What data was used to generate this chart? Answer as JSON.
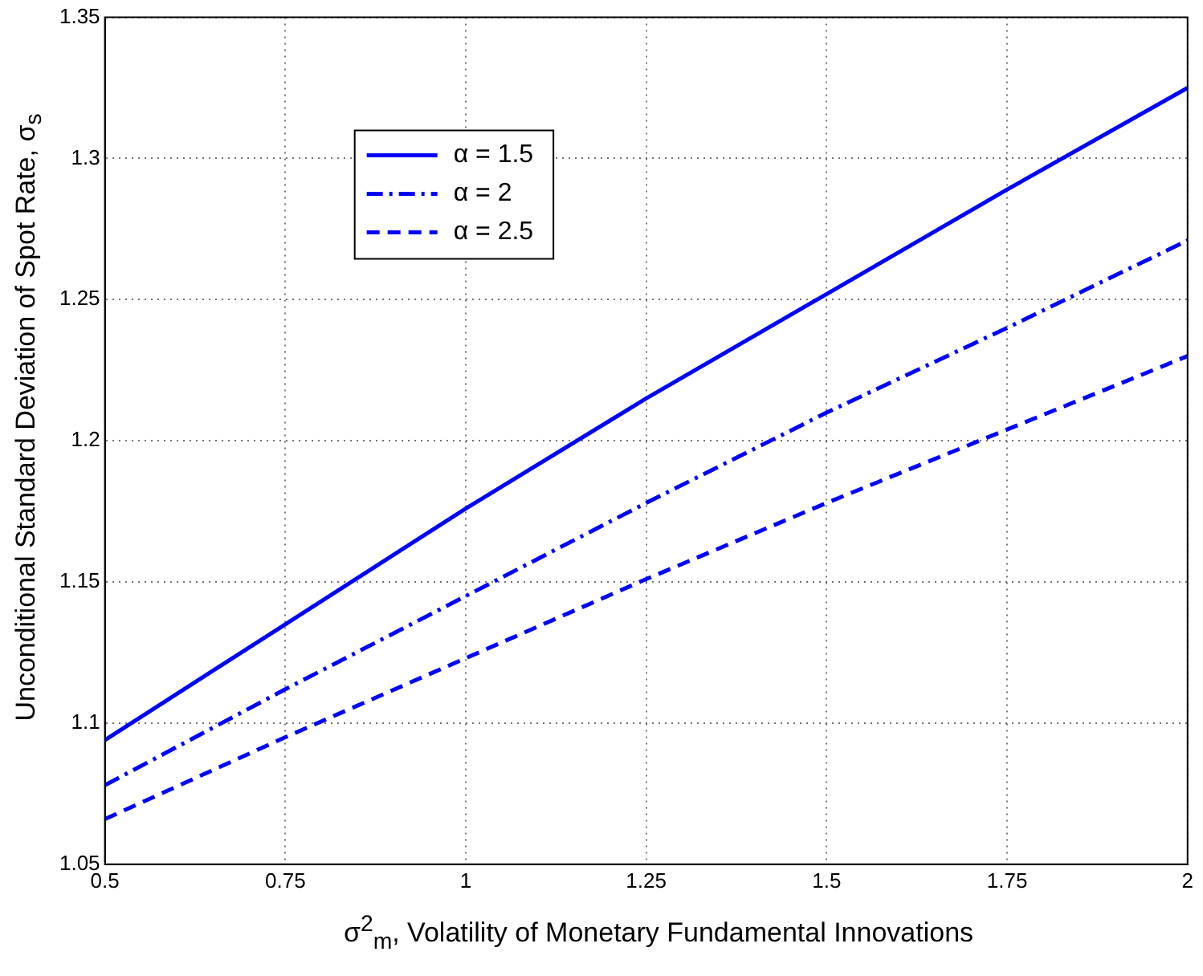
{
  "chart_data": {
    "type": "line",
    "xlabel": "σ$^{2}$$_{m}$, Volatility of Monetary Fundamental Innovations",
    "ylabel": "Unconditional Standard Deviation of Spot Rate, σ$_{s}$",
    "x": [
      0.5,
      0.75,
      1,
      1.25,
      1.5,
      1.75,
      2
    ],
    "series": [
      {
        "name": "α = 1.5",
        "color": "#0000ff",
        "line_style": "solid",
        "values": [
          1.094,
          1.135,
          1.176,
          1.215,
          1.252,
          1.289,
          1.325
        ]
      },
      {
        "name": "α = 2",
        "color": "#0000ff",
        "line_style": "dashdot",
        "values": [
          1.078,
          1.112,
          1.145,
          1.178,
          1.21,
          1.24,
          1.271
        ]
      },
      {
        "name": "α = 2.5",
        "color": "#0000ff",
        "line_style": "dashed",
        "values": [
          1.066,
          1.095,
          1.123,
          1.151,
          1.178,
          1.204,
          1.23
        ]
      }
    ],
    "xlim": [
      0.5,
      2
    ],
    "xticks": [
      0.5,
      0.75,
      1,
      1.25,
      1.5,
      1.75,
      2
    ],
    "ylim": [
      1.05,
      1.35
    ],
    "yticks": [
      1.05,
      1.1,
      1.15,
      1.2,
      1.25,
      1.3,
      1.35
    ],
    "grid": true,
    "legend": "top left",
    "marker": "none"
  }
}
